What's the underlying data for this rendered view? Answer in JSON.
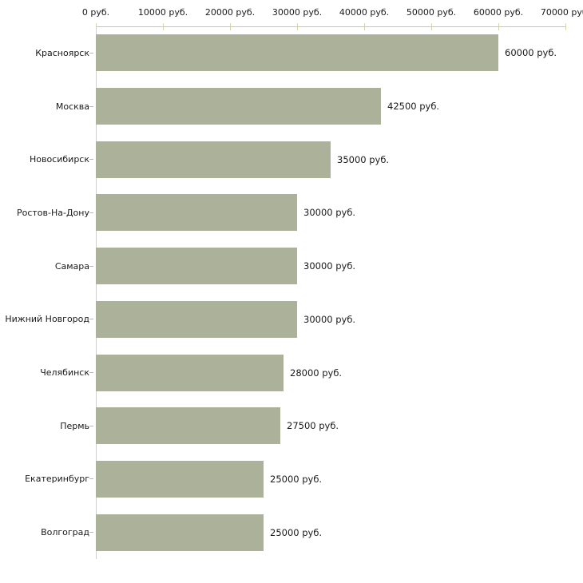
{
  "chart_data": {
    "type": "bar",
    "orientation": "horizontal",
    "title": "",
    "xlabel": "",
    "ylabel": "",
    "unit": "руб.",
    "categories": [
      "Красноярск",
      "Москва",
      "Новосибирск",
      "Ростов-На-Дону",
      "Самара",
      "Нижний Новгород",
      "Челябинск",
      "Пермь",
      "Екатеринбург",
      "Волгоград"
    ],
    "values": [
      60000,
      42500,
      35000,
      30000,
      30000,
      30000,
      28000,
      27500,
      25000,
      25000
    ],
    "value_labels": [
      "60000 руб.",
      "42500 руб.",
      "35000 руб.",
      "30000 руб.",
      "30000 руб.",
      "30000 руб.",
      "28000 руб.",
      "27500 руб.",
      "25000 руб.",
      "25000 руб."
    ],
    "xlim": [
      0,
      70000
    ],
    "x_ticks": [
      0,
      10000,
      20000,
      30000,
      40000,
      50000,
      60000,
      70000
    ],
    "x_tick_labels": [
      "0 руб.",
      "10000 руб.",
      "20000 руб.",
      "30000 руб.",
      "40000 руб.",
      "50000 руб.",
      "60000 руб.",
      "70000 руб."
    ],
    "axis_position": "top",
    "grid": false,
    "legend": null,
    "colors": {
      "bar": "#acb199",
      "axis_line": "#c6c6c6",
      "tick": "#d6d6a8",
      "category_tick": "#b5b5b5",
      "text": "#1a1a1a",
      "background": "#ffffff"
    }
  }
}
